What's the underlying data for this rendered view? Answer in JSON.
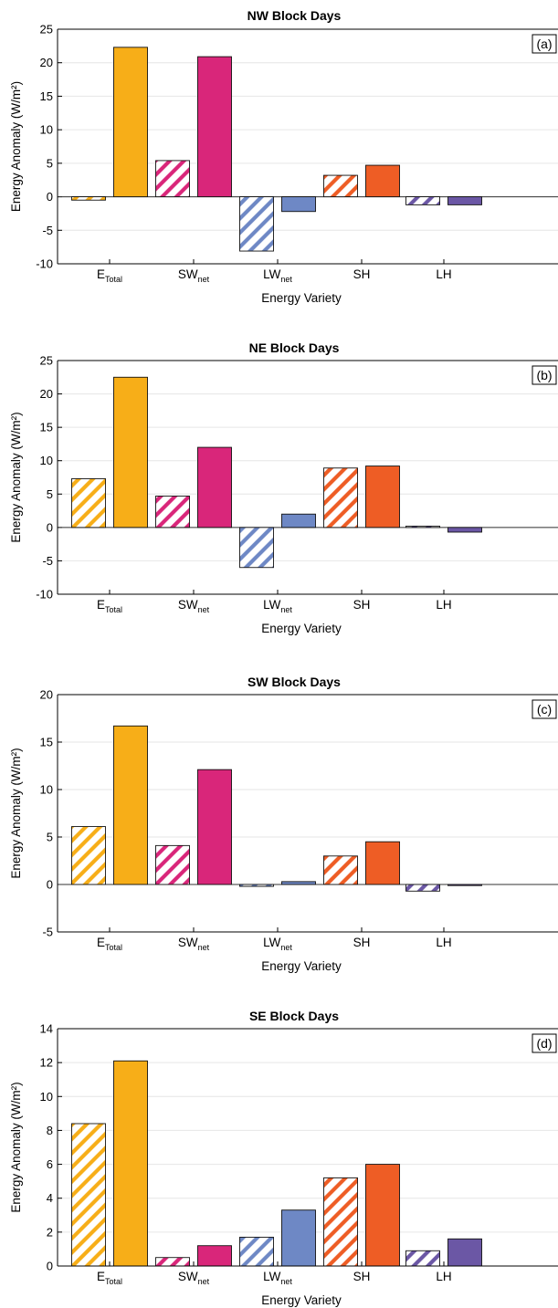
{
  "chart_data": [
    {
      "type": "bar",
      "title": "NW Block Days",
      "panel_label": "(a)",
      "xlabel": "Energy Variety",
      "ylabel": "Energy Anomaly (W/m²)",
      "ylim": [
        -10,
        25
      ],
      "yticks": [
        -10,
        -5,
        0,
        5,
        10,
        15,
        20,
        25
      ],
      "categories": [
        {
          "main": "E",
          "sub": "Total"
        },
        {
          "main": "SW",
          "sub": "net"
        },
        {
          "main": "LW",
          "sub": "net"
        },
        {
          "main": "SH",
          "sub": ""
        },
        {
          "main": "LH",
          "sub": ""
        }
      ],
      "series": [
        {
          "pattern": "hatched",
          "values": [
            -0.5,
            5.4,
            -8.1,
            3.2,
            -1.2
          ]
        },
        {
          "pattern": "solid",
          "values": [
            22.3,
            20.9,
            -2.2,
            4.7,
            -1.2
          ]
        }
      ]
    },
    {
      "type": "bar",
      "title": "NE Block Days",
      "panel_label": "(b)",
      "xlabel": "Energy Variety",
      "ylabel": "Energy Anomaly (W/m²)",
      "ylim": [
        -10,
        25
      ],
      "yticks": [
        -10,
        -5,
        0,
        5,
        10,
        15,
        20,
        25
      ],
      "categories": [
        {
          "main": "E",
          "sub": "Total"
        },
        {
          "main": "SW",
          "sub": "net"
        },
        {
          "main": "LW",
          "sub": "net"
        },
        {
          "main": "SH",
          "sub": ""
        },
        {
          "main": "LH",
          "sub": ""
        }
      ],
      "series": [
        {
          "pattern": "hatched",
          "values": [
            7.3,
            4.7,
            -6.0,
            8.9,
            0.2
          ]
        },
        {
          "pattern": "solid",
          "values": [
            22.5,
            12.0,
            2.0,
            9.2,
            -0.7
          ]
        }
      ]
    },
    {
      "type": "bar",
      "title": "SW Block Days",
      "panel_label": "(c)",
      "xlabel": "Energy Variety",
      "ylabel": "Energy Anomaly (W/m²)",
      "ylim": [
        -5,
        20
      ],
      "yticks": [
        -5,
        0,
        5,
        10,
        15,
        20
      ],
      "categories": [
        {
          "main": "E",
          "sub": "Total"
        },
        {
          "main": "SW",
          "sub": "net"
        },
        {
          "main": "LW",
          "sub": "net"
        },
        {
          "main": "SH",
          "sub": ""
        },
        {
          "main": "LH",
          "sub": ""
        }
      ],
      "series": [
        {
          "pattern": "hatched",
          "values": [
            6.1,
            4.1,
            -0.2,
            3.0,
            -0.7
          ]
        },
        {
          "pattern": "solid",
          "values": [
            16.7,
            12.1,
            0.3,
            4.5,
            -0.1
          ]
        }
      ]
    },
    {
      "type": "bar",
      "title": "SE Block Days",
      "panel_label": "(d)",
      "xlabel": "Energy Variety",
      "ylabel": "Energy Anomaly (W/m²)",
      "ylim": [
        0,
        14
      ],
      "yticks": [
        0,
        2,
        4,
        6,
        8,
        10,
        12,
        14
      ],
      "categories": [
        {
          "main": "E",
          "sub": "Total"
        },
        {
          "main": "SW",
          "sub": "net"
        },
        {
          "main": "LW",
          "sub": "net"
        },
        {
          "main": "SH",
          "sub": ""
        },
        {
          "main": "LH",
          "sub": ""
        }
      ],
      "series": [
        {
          "pattern": "hatched",
          "values": [
            8.4,
            0.5,
            1.7,
            5.2,
            0.9
          ]
        },
        {
          "pattern": "solid",
          "values": [
            12.1,
            1.2,
            3.3,
            6.0,
            1.6
          ]
        }
      ]
    }
  ],
  "colors": {
    "category_colors": [
      "#f7ae18",
      "#d9267a",
      "#6e88c5",
      "#ee5d25",
      "#6b57a5"
    ],
    "gridline": "#e6e6e6",
    "axis": "#000000"
  }
}
